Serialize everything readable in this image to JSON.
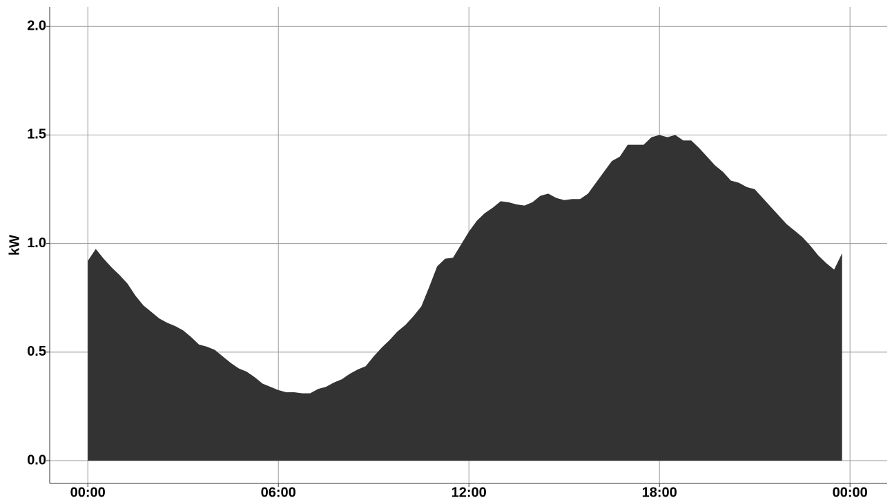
{
  "chart_data": {
    "type": "area",
    "y_label": "kW",
    "color": "#333333",
    "grid": true,
    "x": [
      0,
      0.25,
      0.5,
      0.75,
      1,
      1.25,
      1.5,
      1.75,
      2,
      2.25,
      2.5,
      2.75,
      3,
      3.25,
      3.5,
      3.75,
      4,
      4.25,
      4.5,
      4.75,
      5,
      5.25,
      5.5,
      5.75,
      6,
      6.25,
      6.5,
      6.75,
      7,
      7.25,
      7.5,
      7.75,
      8,
      8.25,
      8.5,
      8.75,
      9,
      9.25,
      9.5,
      9.75,
      10,
      10.25,
      10.5,
      10.75,
      11,
      11.25,
      11.5,
      11.75,
      12,
      12.25,
      12.5,
      12.75,
      13,
      13.25,
      13.5,
      13.75,
      14,
      14.25,
      14.5,
      14.75,
      15,
      15.25,
      15.5,
      15.75,
      16,
      16.25,
      16.5,
      16.75,
      17,
      17.25,
      17.5,
      17.75,
      18,
      18.25,
      18.5,
      18.75,
      19,
      19.25,
      19.5,
      19.75,
      20,
      20.25,
      20.5,
      20.75,
      21,
      21.25,
      21.5,
      21.75,
      22,
      22.25,
      22.5,
      22.75,
      23,
      23.25,
      23.5,
      23.75
    ],
    "values": [
      0.92,
      0.975,
      0.93,
      0.89,
      0.855,
      0.815,
      0.76,
      0.715,
      0.685,
      0.655,
      0.635,
      0.62,
      0.6,
      0.57,
      0.535,
      0.525,
      0.51,
      0.48,
      0.45,
      0.425,
      0.41,
      0.385,
      0.355,
      0.34,
      0.325,
      0.315,
      0.315,
      0.31,
      0.31,
      0.33,
      0.34,
      0.36,
      0.375,
      0.4,
      0.42,
      0.435,
      0.48,
      0.52,
      0.555,
      0.595,
      0.625,
      0.665,
      0.71,
      0.8,
      0.895,
      0.93,
      0.935,
      0.995,
      1.055,
      1.105,
      1.14,
      1.165,
      1.195,
      1.19,
      1.18,
      1.175,
      1.19,
      1.22,
      1.23,
      1.21,
      1.2,
      1.205,
      1.205,
      1.23,
      1.28,
      1.33,
      1.38,
      1.4,
      1.455,
      1.455,
      1.455,
      1.49,
      1.5,
      1.49,
      1.5,
      1.475,
      1.475,
      1.44,
      1.4,
      1.36,
      1.33,
      1.29,
      1.28,
      1.26,
      1.25,
      1.21,
      1.17,
      1.13,
      1.09,
      1.06,
      1.03,
      0.99,
      0.945,
      0.91,
      0.88,
      0.955
    ],
    "xlim": [
      -1.2,
      25.17
    ],
    "xticks": [
      {
        "value": 0,
        "label": "00:00"
      },
      {
        "value": 6,
        "label": "06:00"
      },
      {
        "value": 12,
        "label": "12:00"
      },
      {
        "value": 18,
        "label": "18:00"
      },
      {
        "value": 24,
        "label": "00:00"
      }
    ],
    "ylim": [
      -0.105,
      2.09
    ],
    "yticks": [
      {
        "value": 0,
        "label": "0.0"
      },
      0.5,
      {
        "value": 1,
        "label": "1.0"
      },
      1.5,
      {
        "value": 2,
        "label": "2.0"
      }
    ]
  }
}
